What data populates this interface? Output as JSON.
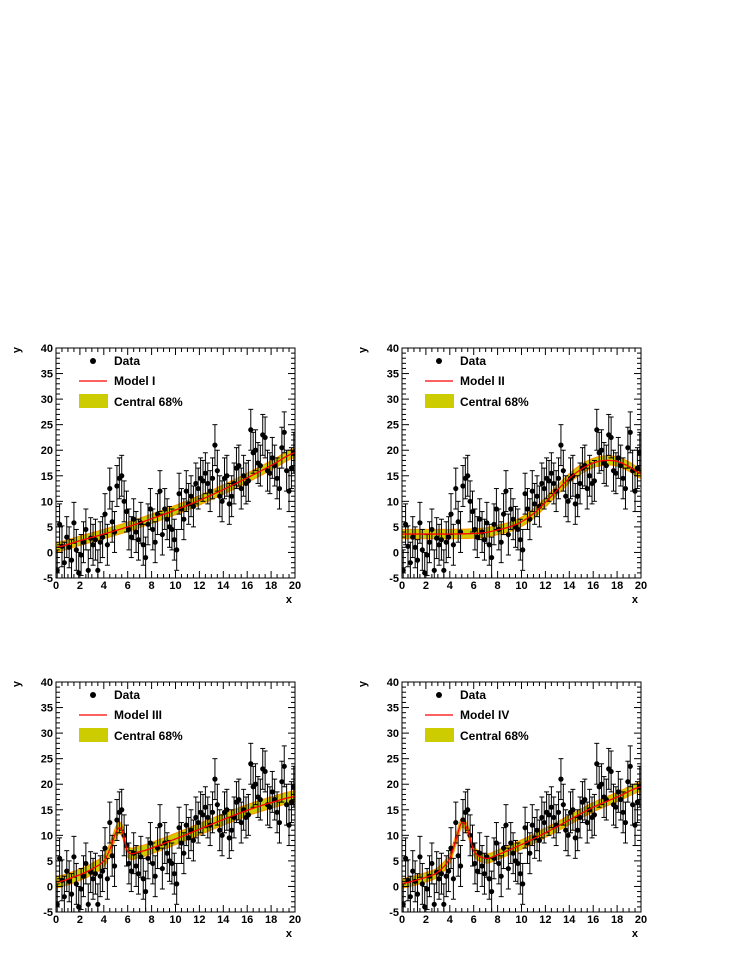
{
  "colors": {
    "data": "#000000",
    "model": "#ff0000",
    "band": "#cccc00",
    "band_edge": "#ff9900"
  },
  "chart_data": [
    {
      "type": "scatter",
      "model_label": "Model I",
      "xlabel": "x",
      "ylabel": "y",
      "xlim": [
        0,
        20
      ],
      "ylim": [
        -5,
        40
      ],
      "xticks": [
        "0",
        "2",
        "4",
        "6",
        "8",
        "10",
        "12",
        "14",
        "16",
        "18",
        "20"
      ],
      "yticks": [
        "-5",
        "0",
        "5",
        "10",
        "15",
        "20",
        "25",
        "30",
        "35",
        "40"
      ],
      "legend": [
        "Data",
        "Model I",
        "Central 68%"
      ],
      "curve": {
        "x": [
          0,
          2,
          4,
          6,
          8,
          10,
          12,
          14,
          16,
          18,
          20
        ],
        "y": [
          1.0,
          2.3,
          3.6,
          5.0,
          6.6,
          8.3,
          10.2,
          12.3,
          14.6,
          17.0,
          19.5
        ]
      },
      "band_width": 0.9
    },
    {
      "type": "scatter",
      "model_label": "Model II",
      "xlabel": "x",
      "ylabel": "y",
      "xlim": [
        0,
        20
      ],
      "ylim": [
        -5,
        40
      ],
      "xticks": [
        "0",
        "2",
        "4",
        "6",
        "8",
        "10",
        "12",
        "14",
        "16",
        "18",
        "20"
      ],
      "yticks": [
        "-5",
        "0",
        "5",
        "10",
        "15",
        "20",
        "25",
        "30",
        "35",
        "40"
      ],
      "legend": [
        "Data",
        "Model II",
        "Central 68%"
      ],
      "curve": {
        "x": [
          0,
          2,
          4,
          6,
          7,
          8,
          9,
          10,
          11,
          12,
          13,
          14,
          15,
          16,
          17,
          18,
          19,
          20
        ],
        "y": [
          3.6,
          3.6,
          3.6,
          3.7,
          3.9,
          4.4,
          5.0,
          6.0,
          7.6,
          9.8,
          12.2,
          14.5,
          16.3,
          17.5,
          18.0,
          17.8,
          16.8,
          15.4
        ]
      },
      "band_width": 0.9
    },
    {
      "type": "scatter",
      "model_label": "Model III",
      "xlabel": "x",
      "ylabel": "y",
      "xlim": [
        0,
        20
      ],
      "ylim": [
        -5,
        40
      ],
      "xticks": [
        "0",
        "2",
        "4",
        "6",
        "8",
        "10",
        "12",
        "14",
        "16",
        "18",
        "20"
      ],
      "yticks": [
        "-5",
        "0",
        "5",
        "10",
        "15",
        "20",
        "25",
        "30",
        "35",
        "40"
      ],
      "legend": [
        "Data",
        "Model III",
        "Central 68%"
      ],
      "curve": {
        "x": [
          0,
          2,
          3,
          4,
          4.5,
          5,
          5.3,
          5.6,
          6,
          7,
          8,
          10,
          12,
          14,
          16,
          18,
          20
        ],
        "y": [
          0.8,
          2.3,
          3.4,
          5.0,
          7.2,
          10.5,
          11.5,
          10.5,
          6.8,
          6.8,
          7.5,
          9.3,
          11.2,
          13.1,
          14.9,
          16.4,
          17.6
        ]
      },
      "band_width": 1.1
    },
    {
      "type": "scatter",
      "model_label": "Model IV",
      "xlabel": "x",
      "ylabel": "y",
      "xlim": [
        0,
        20
      ],
      "ylim": [
        -5,
        40
      ],
      "xticks": [
        "0",
        "2",
        "4",
        "6",
        "8",
        "10",
        "12",
        "14",
        "16",
        "18",
        "20"
      ],
      "yticks": [
        "-5",
        "0",
        "5",
        "10",
        "15",
        "20",
        "25",
        "30",
        "35",
        "40"
      ],
      "legend": [
        "Data",
        "Model IV",
        "Central 68%"
      ],
      "curve": {
        "x": [
          0,
          2,
          3,
          4,
          4.5,
          5,
          5.5,
          6,
          7,
          8,
          10,
          12,
          14,
          16,
          18,
          20
        ],
        "y": [
          0.6,
          1.8,
          2.8,
          5.5,
          9.0,
          12.5,
          11.0,
          7.0,
          5.5,
          6.2,
          8.2,
          10.5,
          13.0,
          15.5,
          17.5,
          19.5
        ]
      },
      "band_width": 0.9
    }
  ],
  "data_points": {
    "x": [
      0.1,
      0.3,
      0.5,
      0.7,
      0.9,
      1.1,
      1.3,
      1.5,
      1.7,
      1.9,
      2.1,
      2.3,
      2.5,
      2.7,
      2.9,
      3.1,
      3.3,
      3.5,
      3.7,
      3.9,
      4.1,
      4.3,
      4.5,
      4.7,
      4.9,
      5.1,
      5.3,
      5.5,
      5.7,
      5.9,
      6.1,
      6.3,
      6.5,
      6.7,
      6.9,
      7.1,
      7.3,
      7.5,
      7.7,
      7.9,
      8.1,
      8.3,
      8.5,
      8.7,
      8.9,
      9.1,
      9.3,
      9.5,
      9.7,
      9.9,
      10.1,
      10.3,
      10.5,
      10.7,
      10.9,
      11.1,
      11.3,
      11.5,
      11.7,
      11.9,
      12.1,
      12.3,
      12.5,
      12.7,
      12.9,
      13.1,
      13.3,
      13.5,
      13.7,
      13.9,
      14.1,
      14.3,
      14.5,
      14.7,
      14.9,
      15.1,
      15.3,
      15.5,
      15.7,
      15.9,
      16.1,
      16.3,
      16.5,
      16.7,
      16.9,
      17.1,
      17.3,
      17.5,
      17.7,
      17.9,
      18.1,
      18.3,
      18.5,
      18.7,
      18.9,
      19.1,
      19.3,
      19.5,
      19.7,
      19.9
    ],
    "y": [
      -3.5,
      5.5,
      1.2,
      -2.0,
      3.0,
      1.0,
      -1.5,
      5.8,
      0.5,
      -4.0,
      -0.5,
      2.0,
      4.5,
      -3.5,
      2.8,
      1.5,
      2.5,
      -3.5,
      2.0,
      3.0,
      7.5,
      1.5,
      12.5,
      6.0,
      4.0,
      13.0,
      14.5,
      15.0,
      10.0,
      8.0,
      4.5,
      3.0,
      6.5,
      4.0,
      2.5,
      5.8,
      1.5,
      -1.0,
      5.5,
      8.5,
      4.5,
      2.0,
      7.5,
      12.0,
      3.5,
      8.5,
      6.5,
      5.0,
      4.5,
      2.5,
      0.5,
      11.5,
      8.5,
      6.5,
      12.0,
      9.5,
      11.0,
      9.0,
      13.5,
      12.5,
      14.5,
      14.0,
      15.5,
      13.5,
      12.0,
      14.5,
      21.0,
      16.0,
      11.0,
      10.0,
      14.5,
      15.0,
      9.5,
      11.0,
      13.5,
      16.5,
      17.0,
      12.5,
      15.0,
      13.5,
      14.0,
      24.0,
      19.5,
      20.0,
      17.5,
      17.0,
      23.0,
      22.5,
      16.0,
      15.5,
      18.5,
      17.0,
      14.5,
      12.5,
      20.5,
      23.5,
      16.0,
      12.0,
      16.5,
      19.5
    ],
    "err": 4
  }
}
